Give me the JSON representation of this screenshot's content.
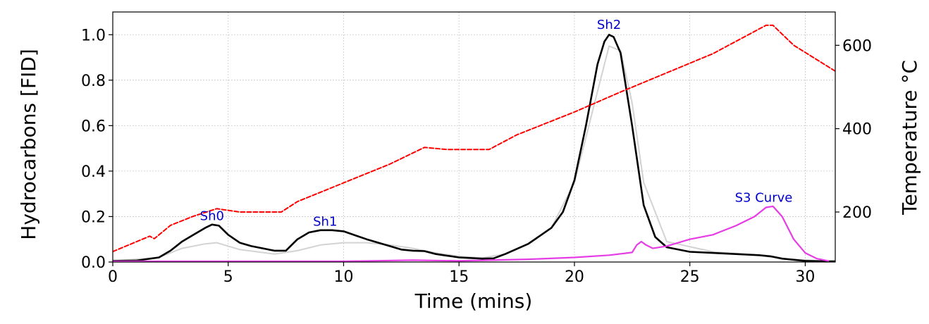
{
  "chart_data": {
    "type": "line",
    "xlabel": "Time (mins)",
    "ylabel": "Hydrocarbons [FID]",
    "ylabel_right": "Temperature °C",
    "xlim": [
      0,
      31.3
    ],
    "ylim": [
      0,
      1.1
    ],
    "ylim_right": [
      80,
      680
    ],
    "x_ticks": [
      0,
      5,
      10,
      15,
      20,
      25,
      30
    ],
    "y_ticks": [
      "0.0",
      "0.2",
      "0.4",
      "0.6",
      "0.8",
      "1.0"
    ],
    "y_ticks_right": [
      200,
      400,
      600
    ],
    "grid": true,
    "colors": {
      "hydrocarbons": "#000000",
      "replicates": "#d3d3d3",
      "temperature": "#ff0000",
      "s3": "#e63ce6",
      "annotation": "#0000cc"
    },
    "annotations": [
      {
        "text": "Sh0",
        "x": 4.3,
        "y": 0.185
      },
      {
        "text": "Sh1",
        "x": 9.2,
        "y": 0.16
      },
      {
        "text": "Sh2",
        "x": 21.5,
        "y": 1.025
      },
      {
        "text": "S3 Curve",
        "x": 28.2,
        "y": 0.265
      }
    ],
    "series": [
      {
        "key": "hydrocarbons",
        "axis": "left",
        "x": [
          0,
          1,
          2,
          2.5,
          3,
          3.5,
          4,
          4.3,
          4.6,
          5,
          5.5,
          6,
          7,
          7.5,
          8,
          8.5,
          9,
          9.5,
          10,
          11,
          12,
          12.5,
          13,
          13.5,
          14,
          15,
          16,
          16.5,
          17,
          18,
          19,
          19.5,
          20,
          20.5,
          21,
          21.3,
          21.5,
          21.7,
          22,
          22.5,
          23,
          23.5,
          24,
          25,
          26,
          27,
          28,
          28.5,
          29,
          30,
          31,
          31.3
        ],
        "y": [
          0.005,
          0.006,
          0.02,
          0.05,
          0.09,
          0.12,
          0.15,
          0.165,
          0.16,
          0.12,
          0.085,
          0.07,
          0.05,
          0.05,
          0.1,
          0.13,
          0.14,
          0.14,
          0.135,
          0.1,
          0.07,
          0.055,
          0.05,
          0.048,
          0.035,
          0.02,
          0.015,
          0.016,
          0.035,
          0.08,
          0.15,
          0.22,
          0.36,
          0.6,
          0.87,
          0.97,
          1.0,
          0.99,
          0.92,
          0.6,
          0.25,
          0.11,
          0.065,
          0.045,
          0.04,
          0.035,
          0.03,
          0.025,
          0.015,
          0.005,
          0.003,
          0.003
        ]
      },
      {
        "key": "replicates",
        "axis": "left",
        "x": [
          0,
          2,
          3,
          4,
          4.5,
          5.5,
          7,
          8,
          9,
          10,
          11,
          12,
          13,
          14,
          15,
          16,
          17,
          18,
          19,
          20,
          21,
          21.5,
          22,
          22.5,
          23,
          24,
          26,
          28,
          29,
          31
        ],
        "y": [
          0.005,
          0.02,
          0.06,
          0.08,
          0.085,
          0.055,
          0.035,
          0.05,
          0.075,
          0.085,
          0.085,
          0.075,
          0.06,
          0.04,
          0.025,
          0.018,
          0.035,
          0.08,
          0.15,
          0.35,
          0.75,
          0.95,
          0.93,
          0.7,
          0.35,
          0.09,
          0.045,
          0.03,
          0.015,
          0.003
        ]
      },
      {
        "key": "temperature",
        "axis": "right",
        "x": [
          0,
          1.6,
          1.8,
          2.5,
          3.5,
          4.5,
          5.5,
          7.3,
          8,
          10,
          12,
          13.5,
          14.5,
          16.3,
          17.5,
          20,
          22,
          24,
          26,
          28.3,
          28.6,
          29.5,
          31.3
        ],
        "y": [
          105,
          142,
          136,
          168,
          190,
          208,
          200,
          200,
          225,
          270,
          315,
          355,
          350,
          350,
          385,
          440,
          488,
          534,
          580,
          648,
          648,
          600,
          538
        ]
      },
      {
        "key": "s3",
        "axis": "left",
        "x": [
          0,
          10,
          13,
          15,
          18,
          20,
          21.5,
          22.5,
          22.7,
          22.9,
          23.1,
          23.4,
          24,
          24.5,
          25,
          26,
          27,
          27.8,
          28.3,
          28.6,
          29,
          29.5,
          30,
          30.5,
          31
        ],
        "y": [
          0.003,
          0.003,
          0.008,
          0.005,
          0.012,
          0.02,
          0.03,
          0.042,
          0.075,
          0.09,
          0.075,
          0.06,
          0.07,
          0.085,
          0.1,
          0.12,
          0.16,
          0.2,
          0.24,
          0.245,
          0.2,
          0.1,
          0.04,
          0.015,
          0.005
        ]
      }
    ]
  }
}
